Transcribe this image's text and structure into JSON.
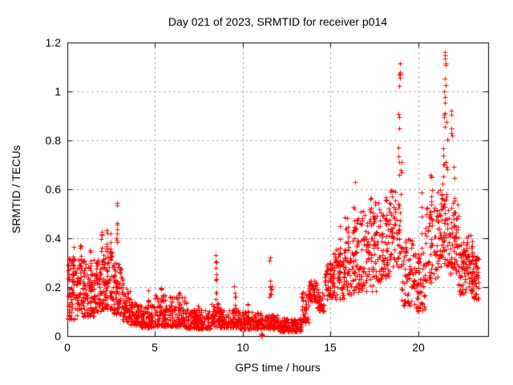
{
  "chart_data": {
    "type": "scatter",
    "title": "Day 021 of 2023, SRMTID for receiver p014",
    "xlabel": "GPS time / hours",
    "ylabel": "SRMTID / TECUs",
    "xlim": [
      0,
      24
    ],
    "ylim": [
      0,
      1.2
    ],
    "xtick_values": [
      0,
      5,
      10,
      15,
      20
    ],
    "xtick_labels": [
      "0",
      "5",
      "10",
      "15",
      "20"
    ],
    "ytick_values": [
      0,
      0.2,
      0.4,
      0.6,
      0.8,
      1.0,
      1.2
    ],
    "ytick_labels": [
      "0",
      "0.2",
      "0.4",
      "0.6",
      "0.8",
      "1",
      "1.2"
    ],
    "grid": true,
    "legend": null,
    "marker": "plus",
    "marker_color": "#ff0000",
    "grid_color": "#a8a8a8",
    "axis_color": "#000000",
    "background_color": "#ffffff",
    "seed": 7,
    "bands": [
      [
        0.0,
        0.5,
        70,
        0.07,
        0.32
      ],
      [
        0.5,
        1.0,
        70,
        0.08,
        0.32
      ],
      [
        1.0,
        1.5,
        70,
        0.08,
        0.3
      ],
      [
        1.5,
        2.0,
        70,
        0.1,
        0.32
      ],
      [
        2.0,
        2.6,
        80,
        0.11,
        0.34
      ],
      [
        2.6,
        3.1,
        70,
        0.09,
        0.3
      ],
      [
        3.1,
        3.6,
        60,
        0.06,
        0.2
      ],
      [
        3.6,
        4.2,
        70,
        0.045,
        0.14
      ],
      [
        4.2,
        5.0,
        90,
        0.035,
        0.13
      ],
      [
        5.0,
        5.8,
        90,
        0.04,
        0.17
      ],
      [
        5.8,
        6.8,
        110,
        0.04,
        0.16
      ],
      [
        6.8,
        8.2,
        150,
        0.03,
        0.11
      ],
      [
        8.2,
        8.7,
        55,
        0.04,
        0.14
      ],
      [
        8.7,
        9.8,
        110,
        0.035,
        0.11
      ],
      [
        9.8,
        11.2,
        140,
        0.03,
        0.1
      ],
      [
        11.2,
        12.1,
        95,
        0.03,
        0.09
      ],
      [
        12.1,
        13.35,
        130,
        0.02,
        0.075
      ],
      [
        13.35,
        13.75,
        45,
        0.05,
        0.18
      ],
      [
        13.75,
        14.25,
        55,
        0.14,
        0.23
      ],
      [
        14.25,
        14.65,
        40,
        0.1,
        0.18
      ],
      [
        14.65,
        15.15,
        55,
        0.15,
        0.3
      ],
      [
        15.15,
        15.8,
        70,
        0.15,
        0.38
      ],
      [
        15.8,
        16.6,
        85,
        0.17,
        0.5
      ],
      [
        16.6,
        17.6,
        100,
        0.18,
        0.52
      ],
      [
        17.6,
        18.4,
        85,
        0.22,
        0.55
      ],
      [
        18.4,
        19.05,
        60,
        0.28,
        0.6
      ],
      [
        19.05,
        19.8,
        70,
        0.12,
        0.4
      ],
      [
        19.8,
        20.4,
        60,
        0.1,
        0.35
      ],
      [
        20.4,
        21.1,
        70,
        0.22,
        0.55
      ],
      [
        21.1,
        21.8,
        75,
        0.28,
        0.62
      ],
      [
        21.8,
        22.3,
        60,
        0.25,
        0.55
      ],
      [
        22.3,
        23.1,
        95,
        0.17,
        0.42
      ],
      [
        23.1,
        23.45,
        45,
        0.15,
        0.33
      ]
    ],
    "columns": [
      [
        0.08,
        0.2,
        0.32,
        4
      ],
      [
        0.35,
        0.25,
        0.4,
        6
      ],
      [
        0.75,
        0.28,
        0.42,
        7
      ],
      [
        1.3,
        0.25,
        0.37,
        6
      ],
      [
        1.97,
        0.3,
        0.43,
        7
      ],
      [
        2.25,
        0.3,
        0.45,
        8
      ],
      [
        2.45,
        0.28,
        0.42,
        6
      ],
      [
        2.82,
        0.34,
        0.54,
        8
      ],
      [
        3.15,
        0.18,
        0.26,
        5
      ],
      [
        4.62,
        0.12,
        0.19,
        4
      ],
      [
        5.35,
        0.12,
        0.2,
        5
      ],
      [
        6.35,
        0.12,
        0.2,
        5
      ],
      [
        7.5,
        0.09,
        0.14,
        4
      ],
      [
        8.47,
        0.14,
        0.36,
        10
      ],
      [
        9.55,
        0.1,
        0.21,
        6
      ],
      [
        10.3,
        0.08,
        0.14,
        4
      ],
      [
        11.55,
        0.12,
        0.33,
        7
      ],
      [
        11.63,
        0.1,
        0.22,
        4
      ],
      [
        15.55,
        0.3,
        0.45,
        5
      ],
      [
        16.0,
        0.35,
        0.52,
        6
      ],
      [
        16.35,
        0.4,
        0.53,
        6
      ],
      [
        17.3,
        0.45,
        0.62,
        6
      ],
      [
        17.55,
        0.4,
        0.55,
        5
      ],
      [
        18.15,
        0.45,
        0.58,
        5
      ],
      [
        18.9,
        0.62,
        0.78,
        4
      ],
      [
        18.93,
        0.85,
        0.92,
        3
      ],
      [
        18.95,
        1.0,
        1.11,
        5
      ],
      [
        19.05,
        0.6,
        0.75,
        3
      ],
      [
        19.3,
        0.3,
        0.45,
        4
      ],
      [
        20.2,
        0.35,
        0.6,
        5
      ],
      [
        20.75,
        0.55,
        0.68,
        5
      ],
      [
        21.45,
        0.6,
        0.8,
        6
      ],
      [
        21.5,
        0.82,
        1.0,
        7
      ],
      [
        21.55,
        1.02,
        1.16,
        5
      ],
      [
        21.62,
        0.6,
        0.9,
        6
      ],
      [
        21.9,
        0.8,
        0.93,
        5
      ],
      [
        22.05,
        0.55,
        0.75,
        4
      ],
      [
        22.6,
        0.25,
        0.4,
        8
      ]
    ],
    "points": [
      [
        11.05,
        0.004
      ],
      [
        11.07,
        0.002
      ],
      [
        11.09,
        0.007
      ],
      [
        11.06,
        0.011
      ],
      [
        11.08,
        0.0
      ],
      [
        11.1,
        0.004
      ],
      [
        11.05,
        0.009
      ],
      [
        18.95,
        1.115
      ],
      [
        21.55,
        1.16
      ],
      [
        21.52,
        1.148
      ],
      [
        2.82,
        0.545
      ],
      [
        16.4,
        0.63
      ],
      [
        20.7,
        0.66
      ],
      [
        0.05,
        0.27
      ],
      [
        23.42,
        0.28
      ],
      [
        23.4,
        0.25
      ]
    ]
  }
}
